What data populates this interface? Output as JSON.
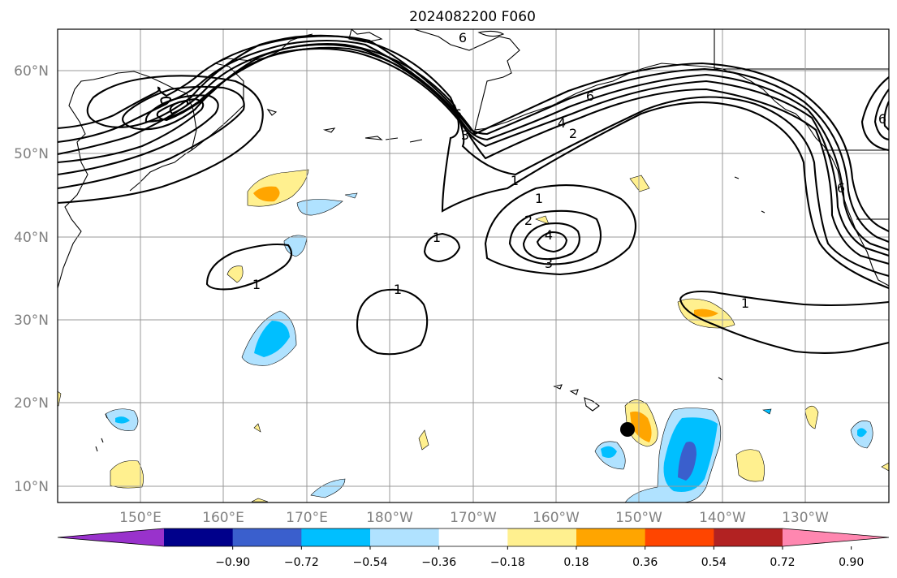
{
  "title": "2024082200 F060",
  "map": {
    "lat_labels": [
      "60°N",
      "50°N",
      "40°N",
      "30°N",
      "20°N",
      "10°N"
    ],
    "lon_labels": [
      "150°E",
      "160°E",
      "170°E",
      "180°W",
      "170°W",
      "160°W",
      "150°W",
      "140°W",
      "130°W"
    ],
    "contour_labels": [
      "1",
      "1",
      "1",
      "1",
      "1",
      "1",
      "2",
      "3",
      "4",
      "2",
      "3",
      "4",
      "6",
      "6",
      "6",
      "6",
      "6"
    ],
    "marker": "storm-position-dot"
  },
  "colorbar": {
    "tick_labels": [
      "−0.90",
      "−0.72",
      "−0.54",
      "−0.36",
      "−0.18",
      "0.18",
      "0.36",
      "0.54",
      "0.72",
      "0.90"
    ],
    "colors": [
      "#9932cc",
      "#00008b",
      "#3a5fcd",
      "#00bfff",
      "#b0e2ff",
      "#ffffff",
      "#fff08f",
      "#ffa500",
      "#ff4500",
      "#b22222",
      "#ff87b0"
    ]
  }
}
